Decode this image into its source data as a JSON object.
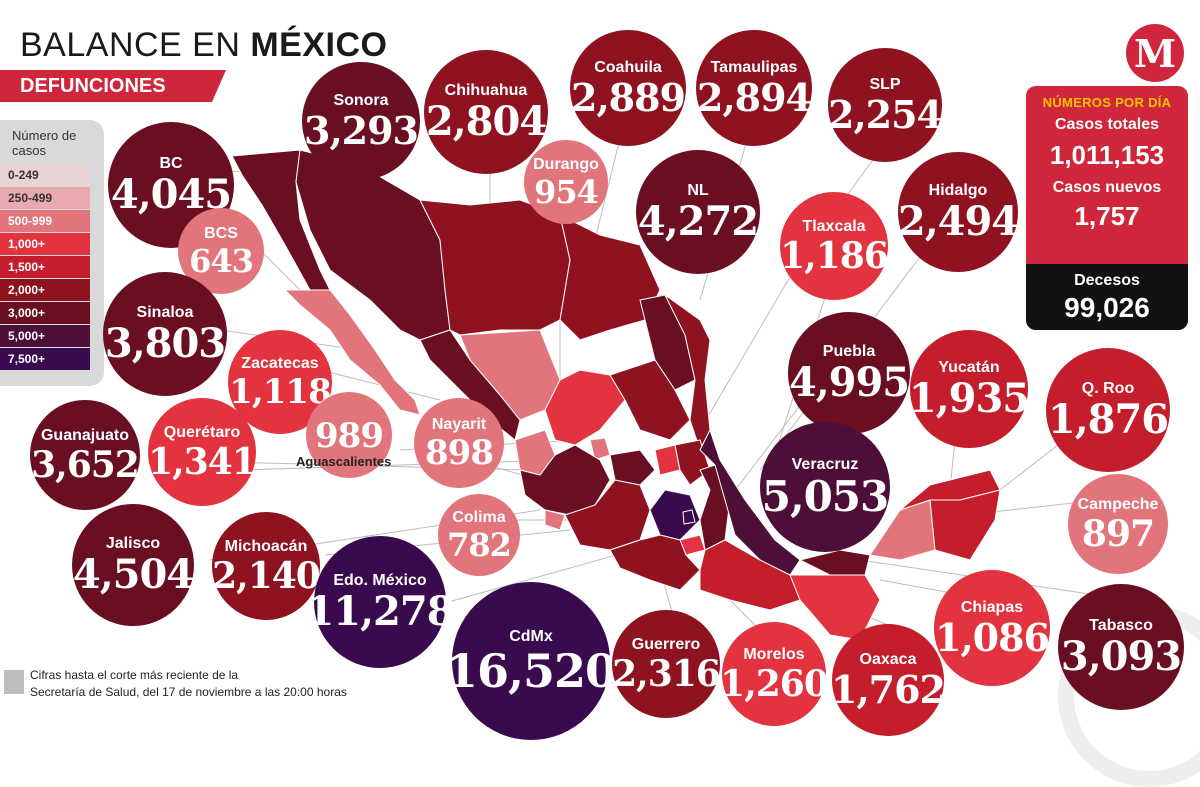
{
  "header": {
    "title_light": "BALANCE EN ",
    "title_bold": "MÉXICO",
    "subtitle": "DEFUNCIONES"
  },
  "legend": {
    "title": "Número de casos",
    "items": [
      {
        "label": "0-249",
        "color": "#e8d3d5"
      },
      {
        "label": "250-499",
        "color": "#e8aaae"
      },
      {
        "label": "500-999",
        "color": "#e2757c"
      },
      {
        "label": "1,000+",
        "color": "#e2333f"
      },
      {
        "label": "1,500+",
        "color": "#c41d2c"
      },
      {
        "label": "2,000+",
        "color": "#8e1220"
      },
      {
        "label": "3,000+",
        "color": "#6a0e22"
      },
      {
        "label": "5,000+",
        "color": "#4d0f38"
      },
      {
        "label": "7,500+",
        "color": "#3a0a4f"
      }
    ]
  },
  "states": [
    {
      "name": "BC",
      "value": "4,045"
    },
    {
      "name": "BCS",
      "value": "643"
    },
    {
      "name": "Sinaloa",
      "value": "3,803"
    },
    {
      "name": "Guanajuato",
      "value": "3,652"
    },
    {
      "name": "Jalisco",
      "value": "4,504"
    },
    {
      "name": "Sonora",
      "value": "3,293"
    },
    {
      "name": "Zacatecas",
      "value": "1,118"
    },
    {
      "name": "Querétaro",
      "value": "1,341"
    },
    {
      "name": "Michoacán",
      "value": "2,140"
    },
    {
      "name": "Chihuahua",
      "value": "2,804"
    },
    {
      "name": "",
      "value": "989"
    },
    {
      "name": "Nayarit",
      "value": "898"
    },
    {
      "name": "Edo. México",
      "value": "11,278"
    },
    {
      "name": "Coahuila",
      "value": "2,889"
    },
    {
      "name": "Durango",
      "value": "954"
    },
    {
      "name": "Colima",
      "value": "782"
    },
    {
      "name": "CdMx",
      "value": "16,520"
    },
    {
      "name": "Tamaulipas",
      "value": "2,894"
    },
    {
      "name": "NL",
      "value": "4,272"
    },
    {
      "name": "Guerrero",
      "value": "2,316"
    },
    {
      "name": "SLP",
      "value": "2,254"
    },
    {
      "name": "Tlaxcala",
      "value": "1,186"
    },
    {
      "name": "Puebla",
      "value": "4,995"
    },
    {
      "name": "Veracruz",
      "value": "5,053"
    },
    {
      "name": "Morelos",
      "value": "1,260"
    },
    {
      "name": "Hidalgo",
      "value": "2,494"
    },
    {
      "name": "Yucatán",
      "value": "1,935"
    },
    {
      "name": "Oaxaca",
      "value": "1,762"
    },
    {
      "name": "Chiapas",
      "value": "1,086"
    },
    {
      "name": "Q. Roo",
      "value": "1,876"
    },
    {
      "name": "Campeche",
      "value": "897"
    },
    {
      "name": "Tabasco",
      "value": "3,093"
    }
  ],
  "aguascalientes_label": "Aguascalientes",
  "logo": "M",
  "daily": {
    "header": "NÚMEROS POR DÍA",
    "total_label": "Casos totales",
    "total_value": "1,011,153",
    "new_label": "Casos nuevos",
    "new_value": "1,757",
    "deaths_label": "Decesos",
    "deaths_value": "99,026"
  },
  "footnote": {
    "line1": "Cifras hasta el corte más reciente de la",
    "line2": "Secretaría de Salud, del 17 de noviembre a las 20:00 horas"
  }
}
